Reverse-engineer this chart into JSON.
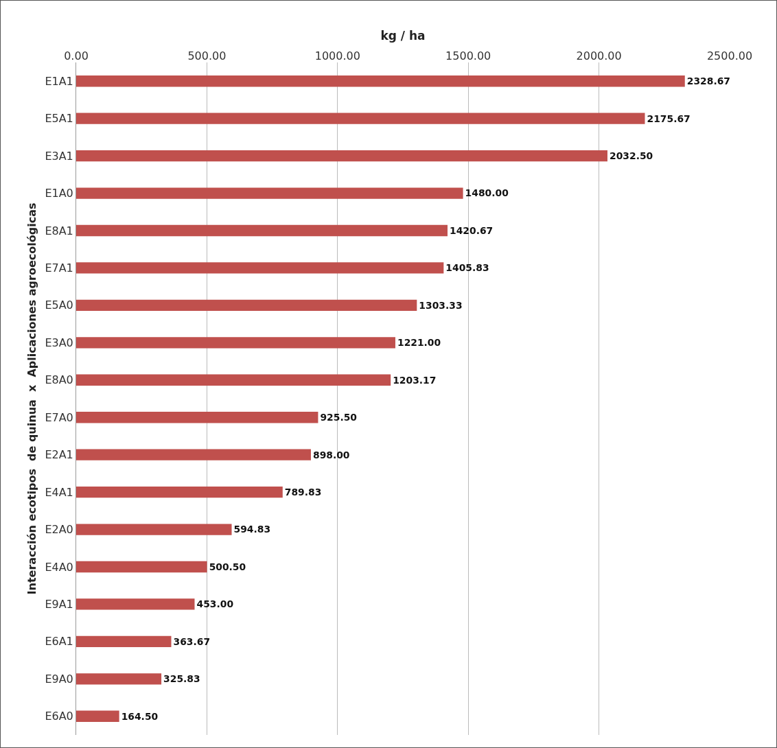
{
  "chart_data": {
    "type": "bar",
    "orientation": "horizontal",
    "xlabel": "kg / ha",
    "ylabel": "Interacción ecotipos  de quinua  x  Aplicaciones agroecológicas",
    "categories": [
      "E1A1",
      "E5A1",
      "E3A1",
      "E1A0",
      "E8A1",
      "E7A1",
      "E5A0",
      "E3A0",
      "E8A0",
      "E7A0",
      "E2A1",
      "E4A1",
      "E2A0",
      "E4A0",
      "E9A1",
      "E6A1",
      "E9A0",
      "E6A0"
    ],
    "values": [
      2328.67,
      2175.67,
      2032.5,
      1480,
      1420.67,
      1405.83,
      1303.33,
      1221,
      1203.17,
      925.5,
      898,
      789.83,
      594.83,
      500.5,
      453,
      363.67,
      325.83,
      164.5
    ],
    "value_labels": [
      "2328.67",
      "2175.67",
      "2032.50",
      "1480.00",
      "1420.67",
      "1405.83",
      "1303.33",
      "1221.00",
      "1203.17",
      "925.50",
      "898.00",
      "789.83",
      "594.83",
      "500.50",
      "453.00",
      "363.67",
      "325.83",
      "164.50"
    ],
    "color": "#c0504d",
    "xlim": [
      0,
      2500
    ],
    "xticks": [
      {
        "value": 0,
        "label": "0.00"
      },
      {
        "value": 500,
        "label": "500.00"
      },
      {
        "value": 1000,
        "label": "1000.00"
      },
      {
        "value": 1500,
        "label": "1500.00"
      },
      {
        "value": 2000,
        "label": "2000.00"
      },
      {
        "value": 2500,
        "label": "2500.00"
      }
    ],
    "grid": "x",
    "legend": false
  }
}
